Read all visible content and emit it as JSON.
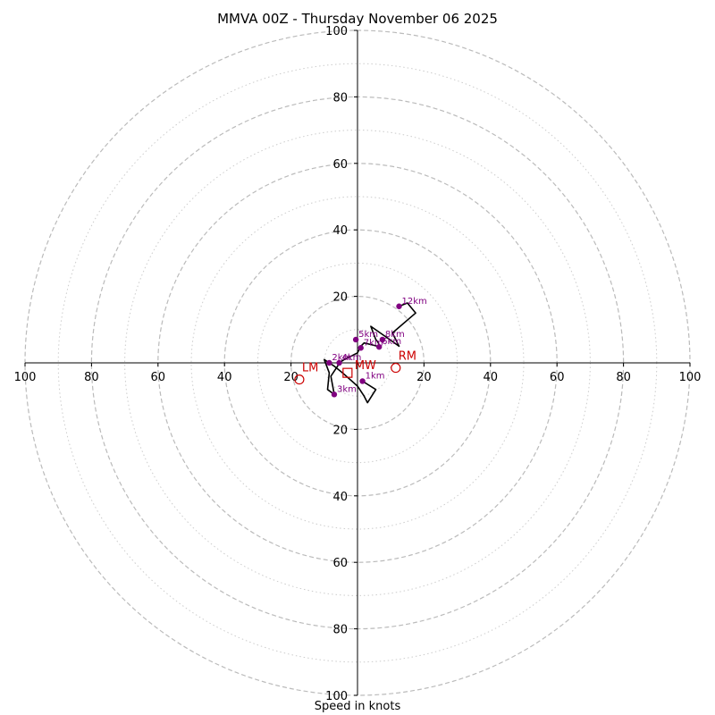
{
  "title": "MMVA 00Z - Thursday November 06 2025",
  "chart_data": {
    "type": "hodograph",
    "title": "MMVA 00Z - Thursday November 06 2025",
    "xlabel": "Speed in knots",
    "ylabel": "",
    "xlim": [
      -100,
      100
    ],
    "ylim": [
      -100,
      100
    ],
    "major_rings": [
      20,
      40,
      60,
      80,
      100
    ],
    "minor_rings": [
      10,
      30,
      50,
      70,
      90
    ],
    "x_tick_labels": [
      "100",
      "80",
      "60",
      "40",
      "20",
      "20",
      "40",
      "60",
      "80",
      "100"
    ],
    "x_tick_values": [
      -100,
      -80,
      -60,
      -40,
      -20,
      20,
      40,
      60,
      80,
      100
    ],
    "y_tick_labels": [
      "100",
      "80",
      "60",
      "40",
      "20",
      "20",
      "40",
      "60",
      "80",
      "100"
    ],
    "y_tick_values": [
      100,
      80,
      60,
      40,
      20,
      -20,
      -40,
      -60,
      -80,
      -100
    ],
    "trace": [
      [
        1.5,
        -5.5
      ],
      [
        5.5,
        -8.0
      ],
      [
        3.0,
        -12.0
      ],
      [
        2.0,
        -10.0
      ],
      [
        0.0,
        -7.0
      ],
      [
        -4.5,
        -3.0
      ],
      [
        -7.0,
        -1.0
      ],
      [
        -8.5,
        0.0
      ],
      [
        -10.0,
        1.0
      ],
      [
        -8.5,
        -3.0
      ],
      [
        -9.0,
        -8.0
      ],
      [
        -7.0,
        -9.5
      ],
      [
        -8.0,
        -4.0
      ],
      [
        -6.0,
        -1.0
      ],
      [
        -5.5,
        0.0
      ],
      [
        -4.0,
        1.0
      ],
      [
        -2.0,
        2.0
      ],
      [
        0.0,
        3.0
      ],
      [
        1.0,
        5.0
      ],
      [
        2.0,
        6.0
      ],
      [
        4.0,
        5.5
      ],
      [
        6.0,
        5.0
      ],
      [
        7.0,
        4.5
      ],
      [
        6.0,
        6.5
      ],
      [
        5.5,
        7.0
      ],
      [
        4.0,
        11.0
      ],
      [
        9.0,
        7.5
      ],
      [
        12.5,
        5.0
      ],
      [
        10.5,
        9.0
      ],
      [
        17.5,
        15.0
      ],
      [
        15.0,
        18.0
      ],
      [
        12.5,
        17.0
      ]
    ],
    "height_markers": [
      {
        "label": "1km",
        "u": 1.5,
        "v": -5.5
      },
      {
        "label": "2km",
        "u": -8.5,
        "v": 0.0
      },
      {
        "label": "3km",
        "u": -7.0,
        "v": -9.5
      },
      {
        "label": "4km",
        "u": -5.5,
        "v": 0.0
      },
      {
        "label": "5km",
        "u": -0.5,
        "v": 7.0
      },
      {
        "label": "6km",
        "u": 6.5,
        "v": 4.8
      },
      {
        "label": "7km",
        "u": 1.0,
        "v": 4.5
      },
      {
        "label": "8km",
        "u": 7.5,
        "v": 7.0
      },
      {
        "label": "12km",
        "u": 12.5,
        "v": 17.0
      }
    ],
    "storm_motion": [
      {
        "label": "RM",
        "u": 11.5,
        "v": -1.5,
        "shape": "circle"
      },
      {
        "label": "LM",
        "u": -17.5,
        "v": -5.0,
        "shape": "circle"
      },
      {
        "label": "MW",
        "u": -3.0,
        "v": -3.0,
        "shape": "square"
      }
    ],
    "colors": {
      "trace": "#000000",
      "height_marker": "#800080",
      "storm_motion": "#cc0000",
      "major_ring": "#bbbbbb",
      "minor_ring": "#cccccc",
      "axis": "#000000"
    },
    "grid": true
  }
}
